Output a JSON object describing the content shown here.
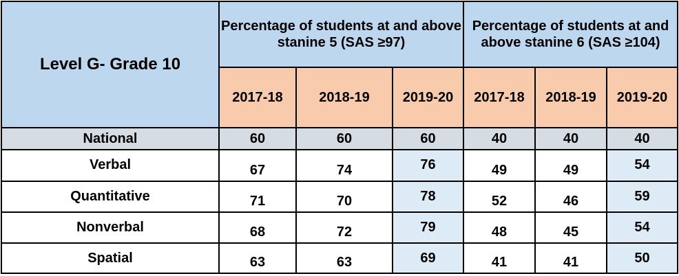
{
  "table": {
    "level_title": "Level G- Grade 10",
    "groups": [
      "Percentage of students at and above stanine 5 (SAS ≥97)",
      "Percentage of students at and above stanine 6 (SAS ≥104)"
    ],
    "years": [
      "2017-18",
      "2018-19",
      "2019-20",
      "2017-18",
      "2018-19",
      "2019-20"
    ],
    "rows": [
      {
        "label": "National",
        "values": [
          "60",
          "60",
          "60",
          "40",
          "40",
          "40"
        ]
      },
      {
        "label": "Verbal",
        "values": [
          "67",
          "74",
          "76",
          "49",
          "49",
          "54"
        ]
      },
      {
        "label": "Quantitative",
        "values": [
          "71",
          "70",
          "78",
          "52",
          "46",
          "59"
        ]
      },
      {
        "label": "Nonverbal",
        "values": [
          "68",
          "72",
          "79",
          "48",
          "45",
          "54"
        ]
      },
      {
        "label": "Spatial",
        "values": [
          "63",
          "63",
          "69",
          "41",
          "41",
          "50"
        ]
      }
    ],
    "colors": {
      "header_blue": "#bdd7ee",
      "year_orange": "#f8cbad",
      "national_gray": "#d6dce4",
      "highlight_blue": "#ddebf7",
      "border": "#000000"
    }
  }
}
